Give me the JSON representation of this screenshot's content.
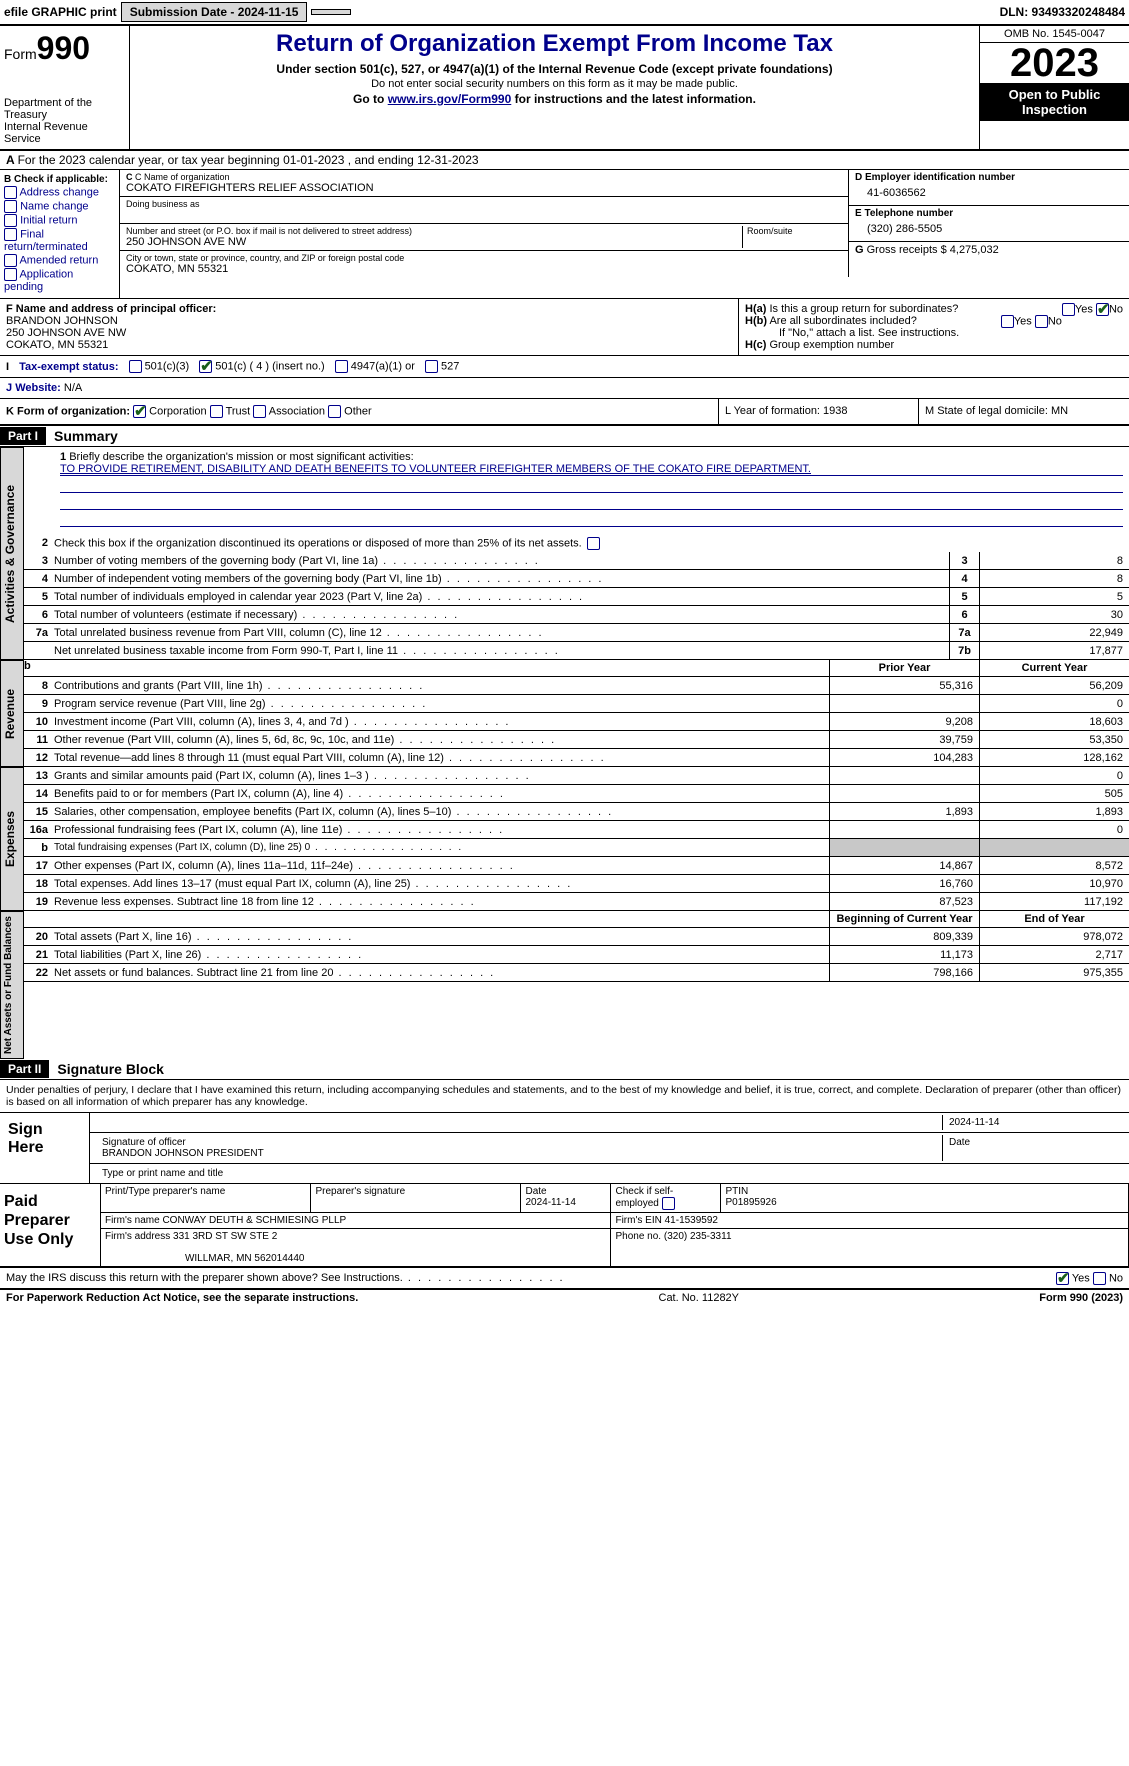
{
  "topbar": {
    "efile": "efile GRAPHIC print",
    "submission_label": "Submission Date - 2024-11-15",
    "dln_label": "DLN: 93493320248484"
  },
  "header": {
    "form_word": "Form",
    "form_num": "990",
    "dept1": "Department of the Treasury",
    "dept2": "Internal Revenue Service",
    "title": "Return of Organization Exempt From Income Tax",
    "sub1": "Under section 501(c), 527, or 4947(a)(1) of the Internal Revenue Code (except private foundations)",
    "sub2": "Do not enter social security numbers on this form as it may be made public.",
    "sub3_pre": "Go to ",
    "sub3_link": "www.irs.gov/Form990",
    "sub3_post": " for instructions and the latest information.",
    "omb": "OMB No. 1545-0047",
    "year": "2023",
    "open": "Open to Public Inspection"
  },
  "row_a": "For the 2023 calendar year, or tax year beginning 01-01-2023    , and ending 12-31-2023",
  "box_b": {
    "label": "B Check if applicable:",
    "opts": [
      "Address change",
      "Name change",
      "Initial return",
      "Final return/terminated",
      "Amended return",
      "Application pending"
    ]
  },
  "box_c": {
    "name_label": "C Name of organization",
    "name": "COKATO FIREFIGHTERS RELIEF ASSOCIATION",
    "dba_label": "Doing business as",
    "addr_label": "Number and street (or P.O. box if mail is not delivered to street address)",
    "room_label": "Room/suite",
    "addr": "250 JOHNSON AVE NW",
    "city_label": "City or town, state or province, country, and ZIP or foreign postal code",
    "city": "COKATO, MN  55321"
  },
  "box_d": {
    "label": "D Employer identification number",
    "val": "41-6036562"
  },
  "box_e": {
    "label": "E Telephone number",
    "val": "(320) 286-5505"
  },
  "box_g": {
    "label": "G",
    "text": "Gross receipts $ 4,275,032"
  },
  "box_f": {
    "label": "F  Name and address of principal officer:",
    "l1": "BRANDON JOHNSON",
    "l2": "250 JOHNSON AVE NW",
    "l3": "COKATO, MN  55321"
  },
  "box_h": {
    "a": "Is this a group return for subordinates?",
    "b": "Are all subordinates included?",
    "note": "If \"No,\" attach a list. See instructions.",
    "c": "Group exemption number"
  },
  "tax_status": {
    "label_i": "I",
    "label": "Tax-exempt status:",
    "o1": "501(c)(3)",
    "o2": "501(c) ( 4 ) (insert no.)",
    "o3": "4947(a)(1) or",
    "o4": "527"
  },
  "website": {
    "label_j": "J",
    "label": "Website:",
    "val": "N/A"
  },
  "klm": {
    "k_label": "K Form of organization:",
    "k_opts": [
      "Corporation",
      "Trust",
      "Association",
      "Other"
    ],
    "l": "L Year of formation: 1938",
    "m": "M State of legal domicile: MN"
  },
  "part1": {
    "num": "Part I",
    "title": "Summary"
  },
  "mission": {
    "lead": "Briefly describe the organization's mission or most significant activities:",
    "text": "TO PROVIDE RETIREMENT, DISABILITY AND DEATH BENEFITS TO VOLUNTEER FIREFIGHTER MEMBERS OF THE COKATO FIRE DEPARTMENT."
  },
  "line2": "Check this box         if the organization discontinued its operations or disposed of more than 25% of its net assets.",
  "gov_lines": [
    {
      "n": "3",
      "d": "Number of voting members of the governing body (Part VI, line 1a)",
      "b": "3",
      "v": "8"
    },
    {
      "n": "4",
      "d": "Number of independent voting members of the governing body (Part VI, line 1b)",
      "b": "4",
      "v": "8"
    },
    {
      "n": "5",
      "d": "Total number of individuals employed in calendar year 2023 (Part V, line 2a)",
      "b": "5",
      "v": "5"
    },
    {
      "n": "6",
      "d": "Total number of volunteers (estimate if necessary)",
      "b": "6",
      "v": "30"
    },
    {
      "n": "7a",
      "d": "Total unrelated business revenue from Part VIII, column (C), line 12",
      "b": "7a",
      "v": "22,949"
    },
    {
      "n": "",
      "d": "Net unrelated business taxable income from Form 990-T, Part I, line 11",
      "b": "7b",
      "v": "17,877"
    }
  ],
  "col_hdrs": {
    "b_label": "b",
    "prior": "Prior Year",
    "current": "Current Year"
  },
  "rev_lines": [
    {
      "n": "8",
      "d": "Contributions and grants (Part VIII, line 1h)",
      "p": "55,316",
      "c": "56,209"
    },
    {
      "n": "9",
      "d": "Program service revenue (Part VIII, line 2g)",
      "p": "",
      "c": "0"
    },
    {
      "n": "10",
      "d": "Investment income (Part VIII, column (A), lines 3, 4, and 7d )",
      "p": "9,208",
      "c": "18,603"
    },
    {
      "n": "11",
      "d": "Other revenue (Part VIII, column (A), lines 5, 6d, 8c, 9c, 10c, and 11e)",
      "p": "39,759",
      "c": "53,350"
    },
    {
      "n": "12",
      "d": "Total revenue—add lines 8 through 11 (must equal Part VIII, column (A), line 12)",
      "p": "104,283",
      "c": "128,162"
    }
  ],
  "exp_lines": [
    {
      "n": "13",
      "d": "Grants and similar amounts paid (Part IX, column (A), lines 1–3 )",
      "p": "",
      "c": "0"
    },
    {
      "n": "14",
      "d": "Benefits paid to or for members (Part IX, column (A), line 4)",
      "p": "",
      "c": "505"
    },
    {
      "n": "15",
      "d": "Salaries, other compensation, employee benefits (Part IX, column (A), lines 5–10)",
      "p": "1,893",
      "c": "1,893"
    },
    {
      "n": "16a",
      "d": "Professional fundraising fees (Part IX, column (A), line 11e)",
      "p": "",
      "c": "0"
    },
    {
      "n": "b",
      "d": "Total fundraising expenses (Part IX, column (D), line 25) 0",
      "p": "shade",
      "c": "shade",
      "small": true
    },
    {
      "n": "17",
      "d": "Other expenses (Part IX, column (A), lines 11a–11d, 11f–24e)",
      "p": "14,867",
      "c": "8,572"
    },
    {
      "n": "18",
      "d": "Total expenses. Add lines 13–17 (must equal Part IX, column (A), line 25)",
      "p": "16,760",
      "c": "10,970"
    },
    {
      "n": "19",
      "d": "Revenue less expenses. Subtract line 18 from line 12",
      "p": "87,523",
      "c": "117,192"
    }
  ],
  "net_hdrs": {
    "begin": "Beginning of Current Year",
    "end": "End of Year"
  },
  "net_lines": [
    {
      "n": "20",
      "d": "Total assets (Part X, line 16)",
      "p": "809,339",
      "c": "978,072"
    },
    {
      "n": "21",
      "d": "Total liabilities (Part X, line 26)",
      "p": "11,173",
      "c": "2,717"
    },
    {
      "n": "22",
      "d": "Net assets or fund balances. Subtract line 21 from line 20",
      "p": "798,166",
      "c": "975,355"
    }
  ],
  "vtabs": {
    "gov": "Activities & Governance",
    "rev": "Revenue",
    "exp": "Expenses",
    "net": "Net Assets or Fund Balances"
  },
  "part2": {
    "num": "Part II",
    "title": "Signature Block"
  },
  "sig": {
    "decl": "Under penalties of perjury, I declare that I have examined this return, including accompanying schedules and statements, and to the best of my knowledge and belief, it is true, correct, and complete. Declaration of preparer (other than officer) is based on all information of which preparer has any knowledge.",
    "sign_here": "Sign Here",
    "sig_label": "Signature of officer",
    "date_label": "Date",
    "sig_date": "2024-11-14",
    "name": "BRANDON JOHNSON PRESIDENT",
    "name_label": "Type or print name and title"
  },
  "prep": {
    "label": "Paid Preparer Use Only",
    "h1": "Print/Type preparer's name",
    "h2": "Preparer's signature",
    "h3": "Date",
    "h3v": "2024-11-14",
    "h4": "Check         if self-employed",
    "h5": "PTIN",
    "h5v": "P01895926",
    "firm_label": "Firm's name",
    "firm": "CONWAY DEUTH & SCHMIESING PLLP",
    "ein_label": "Firm's EIN",
    "ein": "41-1539592",
    "addr_label": "Firm's address",
    "addr1": "331 3RD ST SW STE 2",
    "addr2": "WILLMAR, MN  562014440",
    "phone_label": "Phone no.",
    "phone": "(320) 235-3311"
  },
  "may": {
    "q": "May the IRS discuss this return with the preparer shown above? See Instructions.",
    "yes": "Yes",
    "no": "No"
  },
  "footer": {
    "left": "For Paperwork Reduction Act Notice, see the separate instructions.",
    "mid": "Cat. No. 11282Y",
    "right_pre": "Form ",
    "right_b": "990",
    "right_post": " (2023)"
  }
}
